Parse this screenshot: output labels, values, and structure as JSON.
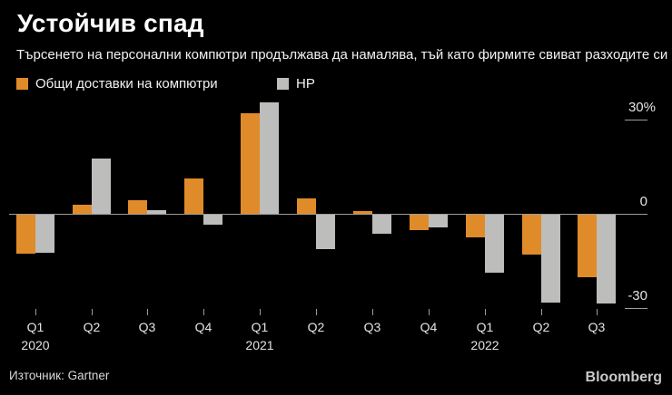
{
  "header": {
    "title": "Устойчив спад",
    "subtitle": "Търсенето на персонални компютри продължава да намалява, тъй като фирмите свиват разходите си"
  },
  "legend": [
    {
      "label": "Общи доставки на компютри",
      "color": "#e08b2a"
    },
    {
      "label": "HP",
      "color": "#bdbdbb"
    }
  ],
  "chart_data": {
    "type": "bar",
    "title": "Устойчив спад",
    "subtitle": "Търсенето на персонални компютри продължава да намалява, тъй като фирмите свиват разходите си",
    "categories": [
      "Q1 2020",
      "Q2 2020",
      "Q3 2020",
      "Q4 2020",
      "Q1 2021",
      "Q2 2021",
      "Q3 2021",
      "Q4 2021",
      "Q1 2022",
      "Q2 2022",
      "Q3 2022"
    ],
    "x_tick_labels": [
      "Q1",
      "Q2",
      "Q3",
      "Q4",
      "Q1",
      "Q2",
      "Q3",
      "Q4",
      "Q1",
      "Q2",
      "Q3"
    ],
    "year_labels": [
      {
        "text": "2020",
        "index": 0
      },
      {
        "text": "2021",
        "index": 4
      },
      {
        "text": "2022",
        "index": 8
      }
    ],
    "series": [
      {
        "name": "Общи доставки на компютри",
        "key": "total",
        "color": "#e08b2a",
        "values": [
          -12.3,
          3.0,
          4.2,
          11.3,
          32.0,
          4.9,
          1.0,
          -5.0,
          -7.3,
          -12.7,
          -19.8
        ]
      },
      {
        "name": "HP",
        "key": "hp",
        "color": "#bdbdbb",
        "values": [
          -12.2,
          17.6,
          1.2,
          -3.2,
          35.4,
          -11.1,
          -6.0,
          -3.9,
          -18.5,
          -27.9,
          -28.4
        ]
      }
    ],
    "yticks": [
      {
        "value": 30,
        "label": "30%"
      },
      {
        "value": 0,
        "label": "0"
      },
      {
        "value": -30,
        "label": "-30"
      }
    ],
    "ylim": [
      -33,
      36
    ],
    "grid": "zero-line-and-edge-ticks",
    "legend_position": "top-left"
  },
  "footer": {
    "source": "Източник: Gartner",
    "brand": "Bloomberg"
  }
}
